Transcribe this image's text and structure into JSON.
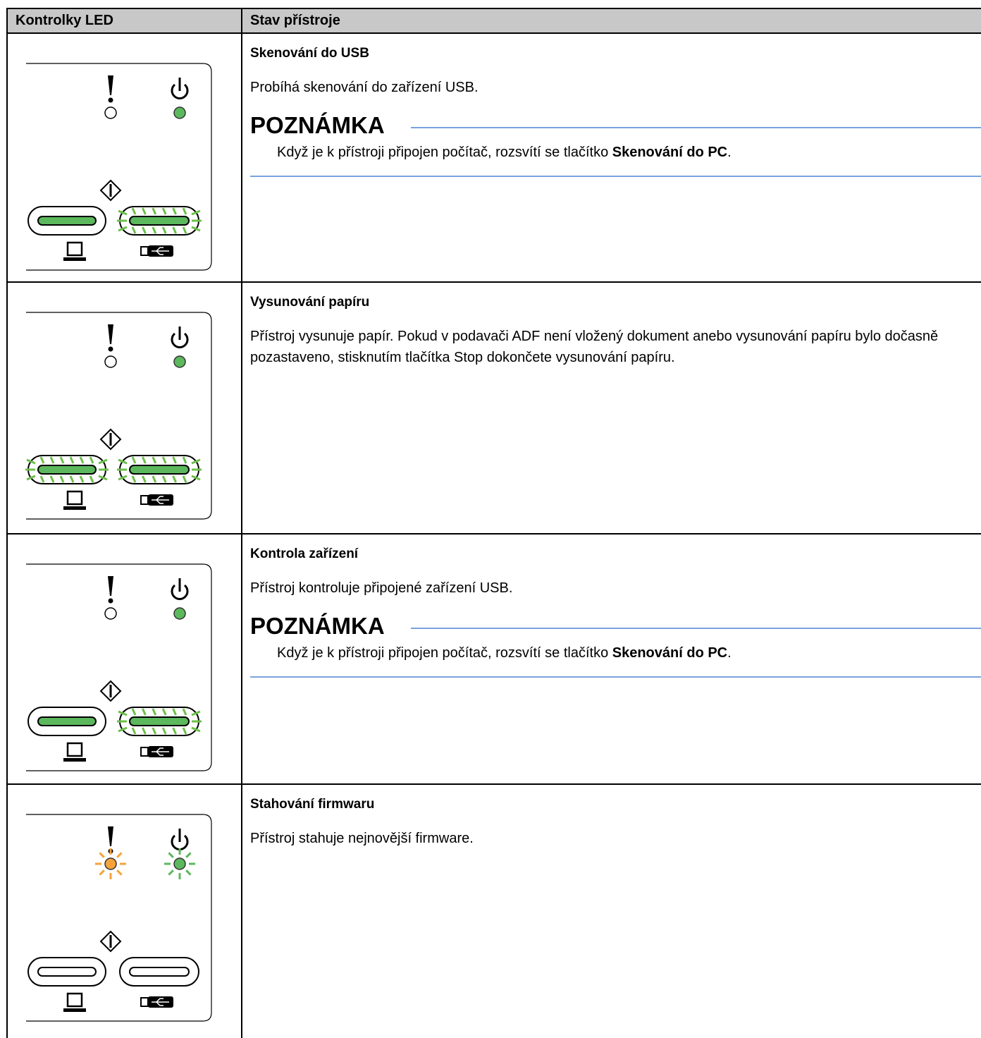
{
  "header": {
    "col1": "Kontrolky LED",
    "col2": "Stav přístroje"
  },
  "rows": [
    {
      "title": "Skenování do USB",
      "description": "Probíhá skenování do zařízení USB.",
      "note": {
        "label": "POZNÁMKA",
        "text": "Když je k přístroji připojen počítač, rozsvítí se tlačítko ",
        "bold": "Skenování do PC",
        "end": "."
      }
    },
    {
      "title": "Vysunování papíru",
      "description": "Přístroj vysunuje papír. Pokud v podavači ADF není vložený dokument anebo vysunování papíru bylo dočasně pozastaveno, stisknutím tlačítka Stop dokončete vysunování papíru."
    },
    {
      "title": "Kontrola zařízení",
      "description": "Přístroj kontroluje připojené zařízení USB.",
      "note": {
        "label": "POZNÁMKA",
        "text": "Když je k přístroji připojen počítač, rozsvítí se tlačítko ",
        "bold": "Skenování do PC",
        "end": "."
      }
    },
    {
      "title": "Stahování firmwaru",
      "description": "Přístroj stahuje nejnovější firmware."
    }
  ]
}
